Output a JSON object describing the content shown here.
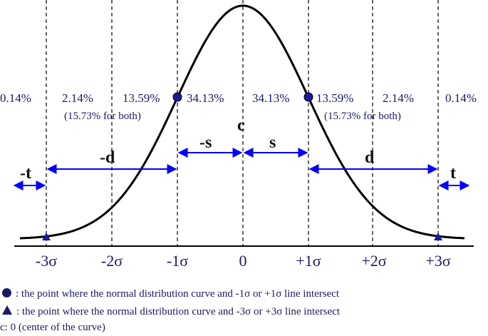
{
  "diagram": {
    "percent_labels": [
      "0.14%",
      "2.14%",
      "13.59%",
      "34.13%",
      "34.13%",
      "13.59%",
      "2.14%",
      "0.14%"
    ],
    "both_left": "(15.73% for both)",
    "both_right": "(15.73% for both)",
    "center_symbol": "c",
    "arrow_labels": {
      "neg_t": "-t",
      "neg_d": "-d",
      "neg_s": "-s",
      "pos_s": "s",
      "pos_d": "d",
      "pos_t": "t"
    },
    "axis_ticks": [
      "-3σ",
      "-2σ",
      "-1σ",
      "0",
      "+1σ",
      "+2σ",
      "+3σ"
    ],
    "colors": {
      "arrows": "#0000ff",
      "markers": "#1a1a99",
      "curve": "#000000",
      "text": "#1a1a66"
    }
  },
  "legend": {
    "circle_text": ": the point where the normal distribution curve and -1σ or +1σ line intersect",
    "triangle_text": ": the point where the normal distribution curve and -3σ or +3σ line intersect",
    "center_text": "c: 0 (center of the curve)"
  }
}
